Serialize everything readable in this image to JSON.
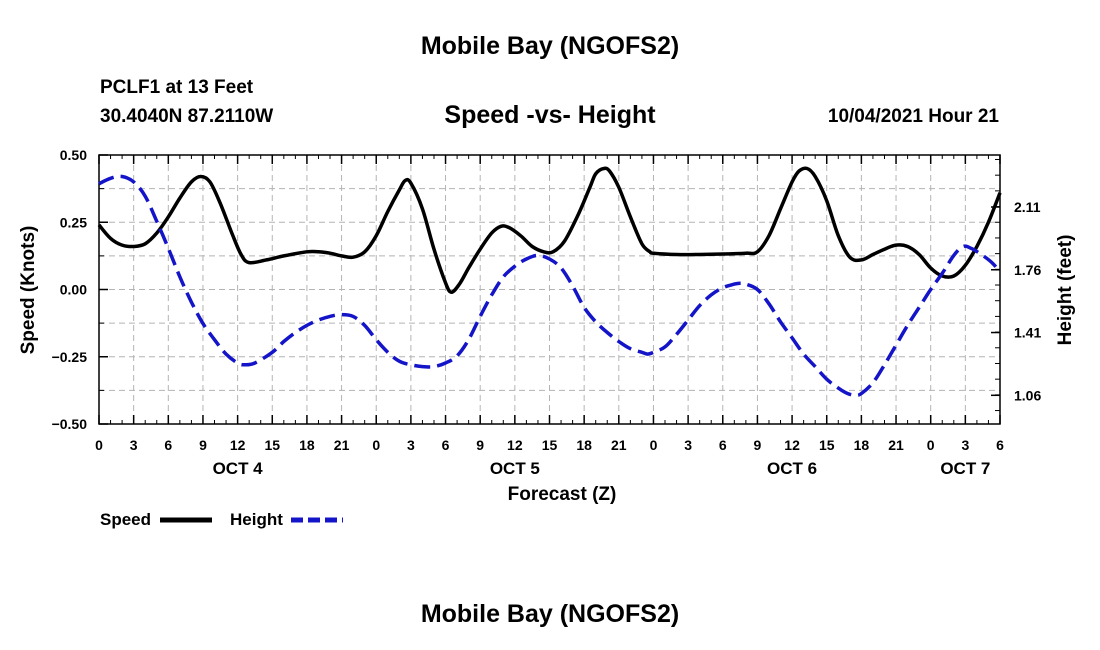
{
  "header": {
    "title": "Mobile Bay (NGOFS2)",
    "station": "PCLF1 at 13 Feet",
    "coords": "30.4040N  87.2110W",
    "subtitle": "Speed -vs- Height",
    "timestamp": "10/04/2021 Hour 21"
  },
  "footer": {
    "title": "Mobile Bay (NGOFS2)"
  },
  "legend": {
    "speed_label": "Speed",
    "height_label": "Height"
  },
  "colors": {
    "speed": "#000000",
    "height": "#1414c8",
    "grid": "#b4b4b4"
  },
  "chart_data": {
    "type": "line",
    "xlabel": "Forecast (Z)",
    "ylabel": "Speed (Knots)",
    "y2label": "Height (feet)",
    "x_hours": [
      0,
      78
    ],
    "x_ticks": [
      {
        "h": 0,
        "label": "0"
      },
      {
        "h": 3,
        "label": "3"
      },
      {
        "h": 6,
        "label": "6"
      },
      {
        "h": 9,
        "label": "9"
      },
      {
        "h": 12,
        "label": "12"
      },
      {
        "h": 15,
        "label": "15"
      },
      {
        "h": 18,
        "label": "18"
      },
      {
        "h": 21,
        "label": "21"
      },
      {
        "h": 24,
        "label": "0"
      },
      {
        "h": 27,
        "label": "3"
      },
      {
        "h": 30,
        "label": "6"
      },
      {
        "h": 33,
        "label": "9"
      },
      {
        "h": 36,
        "label": "12"
      },
      {
        "h": 39,
        "label": "15"
      },
      {
        "h": 42,
        "label": "18"
      },
      {
        "h": 45,
        "label": "21"
      },
      {
        "h": 48,
        "label": "0"
      },
      {
        "h": 51,
        "label": "3"
      },
      {
        "h": 54,
        "label": "6"
      },
      {
        "h": 57,
        "label": "9"
      },
      {
        "h": 60,
        "label": "12"
      },
      {
        "h": 63,
        "label": "15"
      },
      {
        "h": 66,
        "label": "18"
      },
      {
        "h": 69,
        "label": "21"
      },
      {
        "h": 72,
        "label": "0"
      },
      {
        "h": 75,
        "label": "3"
      },
      {
        "h": 78,
        "label": "6"
      }
    ],
    "date_labels": [
      {
        "h": 12,
        "label": "OCT 4"
      },
      {
        "h": 36,
        "label": "OCT 5"
      },
      {
        "h": 60,
        "label": "OCT 6"
      },
      {
        "h": 75,
        "label": "OCT 7"
      }
    ],
    "ylim": [
      -0.5,
      0.5
    ],
    "y_ticks": [
      "0.50",
      "0.25",
      "0.00",
      "−0.25",
      "−0.50"
    ],
    "y_tick_values": [
      0.5,
      0.25,
      0,
      -0.25,
      -0.5
    ],
    "y2lim": [
      0.9,
      2.4
    ],
    "y2_ticks": [
      "2.11",
      "1.76",
      "1.41",
      "1.06"
    ],
    "y2_tick_values": [
      2.11,
      1.76,
      1.41,
      1.06
    ],
    "grid": true,
    "series": [
      {
        "name": "Speed",
        "axis": "left",
        "style": "solid",
        "points": [
          [
            0,
            0.24
          ],
          [
            1,
            0.19
          ],
          [
            2,
            0.165
          ],
          [
            3,
            0.16
          ],
          [
            4,
            0.17
          ],
          [
            5,
            0.21
          ],
          [
            6,
            0.27
          ],
          [
            7,
            0.34
          ],
          [
            8,
            0.4
          ],
          [
            8.8,
            0.42
          ],
          [
            9.6,
            0.4
          ],
          [
            10.5,
            0.32
          ],
          [
            11.5,
            0.21
          ],
          [
            12.3,
            0.13
          ],
          [
            13,
            0.1
          ],
          [
            14.5,
            0.11
          ],
          [
            16,
            0.125
          ],
          [
            18,
            0.14
          ],
          [
            19,
            0.14
          ],
          [
            20,
            0.135
          ],
          [
            21,
            0.125
          ],
          [
            22,
            0.12
          ],
          [
            23,
            0.14
          ],
          [
            24,
            0.2
          ],
          [
            25,
            0.29
          ],
          [
            26,
            0.37
          ],
          [
            26.5,
            0.405
          ],
          [
            27,
            0.395
          ],
          [
            28,
            0.3
          ],
          [
            29,
            0.15
          ],
          [
            30,
            0.025
          ],
          [
            30.5,
            -0.01
          ],
          [
            31.2,
            0.02
          ],
          [
            32,
            0.08
          ],
          [
            33,
            0.15
          ],
          [
            34,
            0.21
          ],
          [
            34.8,
            0.235
          ],
          [
            35.5,
            0.23
          ],
          [
            36.5,
            0.2
          ],
          [
            37.5,
            0.16
          ],
          [
            38.5,
            0.14
          ],
          [
            39.3,
            0.14
          ],
          [
            40.3,
            0.18
          ],
          [
            41.5,
            0.28
          ],
          [
            42.5,
            0.38
          ],
          [
            43,
            0.43
          ],
          [
            43.7,
            0.45
          ],
          [
            44.2,
            0.44
          ],
          [
            45,
            0.38
          ],
          [
            46,
            0.27
          ],
          [
            47,
            0.17
          ],
          [
            47.7,
            0.14
          ],
          [
            48,
            0.135
          ],
          [
            50,
            0.13
          ],
          [
            52,
            0.13
          ],
          [
            54,
            0.132
          ],
          [
            56,
            0.135
          ],
          [
            57,
            0.14
          ],
          [
            58,
            0.2
          ],
          [
            59,
            0.3
          ],
          [
            60,
            0.4
          ],
          [
            60.6,
            0.44
          ],
          [
            61.3,
            0.45
          ],
          [
            62,
            0.42
          ],
          [
            63,
            0.33
          ],
          [
            64,
            0.2
          ],
          [
            65,
            0.12
          ],
          [
            66,
            0.11
          ],
          [
            67,
            0.13
          ],
          [
            68,
            0.15
          ],
          [
            69,
            0.165
          ],
          [
            70,
            0.16
          ],
          [
            71,
            0.13
          ],
          [
            72,
            0.08
          ],
          [
            73,
            0.05
          ],
          [
            74,
            0.05
          ],
          [
            75,
            0.09
          ],
          [
            76,
            0.16
          ],
          [
            77,
            0.25
          ],
          [
            78,
            0.36
          ]
        ]
      },
      {
        "name": "Height",
        "axis": "right",
        "style": "dashed",
        "points": [
          [
            0,
            2.24
          ],
          [
            1,
            2.27
          ],
          [
            2,
            2.28
          ],
          [
            3,
            2.25
          ],
          [
            4,
            2.17
          ],
          [
            5,
            2.03
          ],
          [
            6,
            1.88
          ],
          [
            7,
            1.72
          ],
          [
            8,
            1.58
          ],
          [
            9,
            1.46
          ],
          [
            10,
            1.37
          ],
          [
            11,
            1.29
          ],
          [
            12,
            1.24
          ],
          [
            12.6,
            1.23
          ],
          [
            13.5,
            1.24
          ],
          [
            15,
            1.3
          ],
          [
            16,
            1.36
          ],
          [
            17,
            1.41
          ],
          [
            18,
            1.45
          ],
          [
            19,
            1.48
          ],
          [
            20,
            1.5
          ],
          [
            21,
            1.51
          ],
          [
            22,
            1.5
          ],
          [
            23,
            1.45
          ],
          [
            24,
            1.37
          ],
          [
            25,
            1.3
          ],
          [
            26,
            1.25
          ],
          [
            27,
            1.23
          ],
          [
            28,
            1.22
          ],
          [
            29,
            1.22
          ],
          [
            30,
            1.24
          ],
          [
            31,
            1.28
          ],
          [
            32,
            1.37
          ],
          [
            33,
            1.5
          ],
          [
            34,
            1.62
          ],
          [
            35,
            1.72
          ],
          [
            36,
            1.78
          ],
          [
            37,
            1.82
          ],
          [
            38,
            1.84
          ],
          [
            39,
            1.82
          ],
          [
            40,
            1.77
          ],
          [
            41,
            1.67
          ],
          [
            42,
            1.55
          ],
          [
            43,
            1.47
          ],
          [
            44,
            1.41
          ],
          [
            45,
            1.36
          ],
          [
            46,
            1.32
          ],
          [
            47,
            1.3
          ],
          [
            47.5,
            1.29
          ],
          [
            48,
            1.3
          ],
          [
            49,
            1.33
          ],
          [
            50,
            1.4
          ],
          [
            51,
            1.48
          ],
          [
            52,
            1.56
          ],
          [
            53,
            1.62
          ],
          [
            54,
            1.66
          ],
          [
            55,
            1.68
          ],
          [
            55.5,
            1.685
          ],
          [
            56,
            1.68
          ],
          [
            57,
            1.65
          ],
          [
            58,
            1.57
          ],
          [
            59,
            1.47
          ],
          [
            60,
            1.38
          ],
          [
            61,
            1.29
          ],
          [
            62,
            1.22
          ],
          [
            63,
            1.15
          ],
          [
            64,
            1.1
          ],
          [
            64.8,
            1.07
          ],
          [
            65.5,
            1.06
          ],
          [
            66,
            1.07
          ],
          [
            67,
            1.13
          ],
          [
            68,
            1.23
          ],
          [
            69,
            1.34
          ],
          [
            70,
            1.45
          ],
          [
            71,
            1.55
          ],
          [
            72,
            1.65
          ],
          [
            73,
            1.74
          ],
          [
            74,
            1.84
          ],
          [
            74.8,
            1.89
          ],
          [
            75.5,
            1.88
          ],
          [
            76.5,
            1.84
          ],
          [
            77.3,
            1.8
          ],
          [
            78,
            1.75
          ]
        ]
      }
    ]
  }
}
